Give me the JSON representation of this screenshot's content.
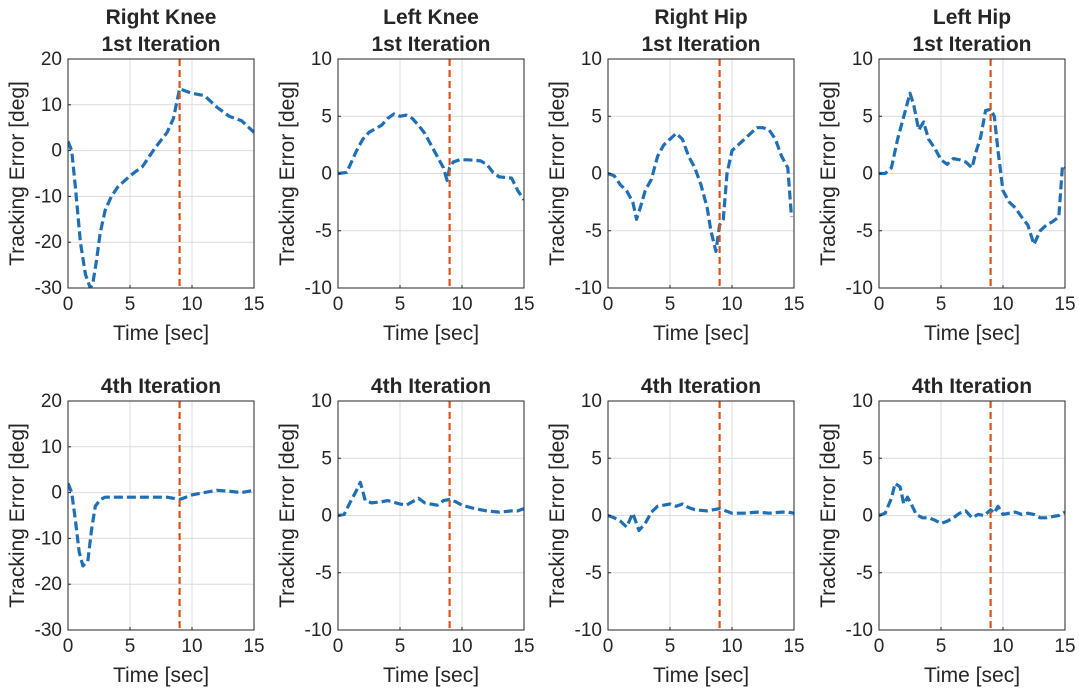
{
  "figure": {
    "rows": 2,
    "cols": 4
  },
  "colors": {
    "series": "#1f6fb5",
    "marker_line": "#d95319",
    "axis": "#262626",
    "grid": "#dcdcdc"
  },
  "chart_data": [
    {
      "type": "line",
      "title_lines": [
        "Right Knee",
        "1st Iteration"
      ],
      "xlabel": "Time [sec]",
      "ylabel": "Tracking Error [deg]",
      "xlim": [
        0,
        15
      ],
      "ylim": [
        -30,
        20
      ],
      "xticks": [
        0,
        5,
        10,
        15
      ],
      "yticks": [
        -30,
        -20,
        -10,
        0,
        10,
        20
      ],
      "vline_x": 9,
      "grid": true,
      "series": [
        {
          "name": "tracking error",
          "style": "dashed",
          "x": [
            0,
            0.3,
            0.6,
            1.0,
            1.4,
            1.8,
            2.0,
            2.3,
            2.6,
            3.0,
            3.5,
            4.0,
            5.0,
            6.0,
            7.0,
            8.0,
            8.5,
            9.0,
            9.5,
            10.0,
            11.0,
            12.0,
            12.5,
            13.0,
            14.0,
            15.0
          ],
          "y": [
            2,
            0,
            -8,
            -20,
            -27,
            -30,
            -29,
            -24,
            -18,
            -13,
            -10,
            -8,
            -5.5,
            -3.5,
            0.5,
            4,
            7,
            13.5,
            13,
            12.5,
            12,
            9.5,
            8.5,
            7.5,
            6.5,
            4
          ]
        }
      ]
    },
    {
      "type": "line",
      "title_lines": [
        "Left Knee",
        "1st Iteration"
      ],
      "xlabel": "Time [sec]",
      "ylabel": "Tracking Error [deg]",
      "xlim": [
        0,
        15
      ],
      "ylim": [
        -10,
        10
      ],
      "xticks": [
        0,
        5,
        10,
        15
      ],
      "yticks": [
        -10,
        -5,
        0,
        5,
        10
      ],
      "vline_x": 9,
      "grid": true,
      "series": [
        {
          "name": "tracking error",
          "style": "dashed",
          "x": [
            0,
            0.7,
            1.0,
            1.5,
            2.0,
            2.5,
            3.0,
            3.5,
            4.0,
            4.5,
            5.0,
            5.5,
            6.0,
            6.5,
            7.0,
            7.5,
            8.0,
            8.5,
            8.8,
            9.0,
            9.3,
            9.8,
            10.5,
            11.5,
            12.0,
            12.5,
            13.0,
            14.0,
            14.5,
            15.0
          ],
          "y": [
            0,
            0.1,
            0.8,
            2,
            3,
            3.6,
            3.9,
            4.2,
            4.8,
            5.2,
            5.0,
            5.1,
            4.8,
            4.2,
            3.5,
            2.5,
            1.5,
            0.5,
            -0.6,
            0.5,
            1.0,
            1.2,
            1.2,
            1.1,
            0.8,
            0.1,
            -0.3,
            -0.4,
            -1.5,
            -2.3
          ]
        }
      ]
    },
    {
      "type": "line",
      "title_lines": [
        "Right Hip",
        "1st Iteration"
      ],
      "xlabel": "Time [sec]",
      "ylabel": "Tracking Error [deg]",
      "xlim": [
        0,
        15
      ],
      "ylim": [
        -10,
        10
      ],
      "xticks": [
        0,
        5,
        10,
        15
      ],
      "yticks": [
        -10,
        -5,
        0,
        5,
        10
      ],
      "vline_x": 9,
      "grid": true,
      "series": [
        {
          "name": "tracking error",
          "style": "dashed",
          "x": [
            0,
            0.5,
            1.0,
            1.5,
            2.0,
            2.3,
            2.6,
            3.0,
            3.5,
            4.0,
            4.5,
            5.0,
            5.5,
            6.0,
            6.5,
            7.0,
            7.5,
            8.0,
            8.3,
            8.7,
            9.0,
            9.3,
            9.6,
            10.0,
            10.5,
            11.0,
            11.5,
            12.0,
            12.5,
            13.0,
            13.5,
            14.0,
            14.5,
            14.8
          ],
          "y": [
            0,
            -0.2,
            -1,
            -1.5,
            -2.5,
            -4,
            -3,
            -1.5,
            -0.5,
            1.5,
            2.5,
            3,
            3.5,
            3,
            1.5,
            0.5,
            -1,
            -3,
            -5,
            -6.8,
            -4.5,
            -4,
            0,
            2,
            2.5,
            3,
            3.5,
            4,
            4,
            3.8,
            3,
            1.5,
            0.5,
            -3.8
          ]
        }
      ]
    },
    {
      "type": "line",
      "title_lines": [
        "Left Hip",
        "1st Iteration"
      ],
      "xlabel": "Time [sec]",
      "ylabel": "Tracking Error [deg]",
      "xlim": [
        0,
        15
      ],
      "ylim": [
        -10,
        10
      ],
      "xticks": [
        0,
        5,
        10,
        15
      ],
      "yticks": [
        -10,
        -5,
        0,
        5,
        10
      ],
      "vline_x": 9,
      "grid": true,
      "series": [
        {
          "name": "tracking error",
          "style": "dashed",
          "x": [
            0,
            0.5,
            1.0,
            1.5,
            2.0,
            2.5,
            2.8,
            3.2,
            3.6,
            4.0,
            4.5,
            5.0,
            5.5,
            6.0,
            6.5,
            7.0,
            7.5,
            7.8,
            8.2,
            8.6,
            9.0,
            9.3,
            9.6,
            10.0,
            10.5,
            11.0,
            11.5,
            12.0,
            12.5,
            13.0,
            13.5,
            14.0,
            14.5,
            14.8,
            15.0
          ],
          "y": [
            0,
            0,
            0.5,
            3,
            5,
            7,
            6,
            3.8,
            4.5,
            3,
            2.2,
            1.2,
            0.8,
            1.3,
            1.2,
            1.0,
            0.5,
            1.8,
            3.2,
            5.5,
            5.6,
            5.0,
            2.0,
            -1.5,
            -2.5,
            -3,
            -3.8,
            -4.5,
            -6.2,
            -5.0,
            -4.5,
            -4.2,
            -3.8,
            0.7,
            0.5
          ]
        }
      ]
    },
    {
      "type": "line",
      "title_lines": [
        "4th Iteration"
      ],
      "xlabel": "Time [sec]",
      "ylabel": "Tracking Error [deg]",
      "xlim": [
        0,
        15
      ],
      "ylim": [
        -30,
        20
      ],
      "xticks": [
        0,
        5,
        10,
        15
      ],
      "yticks": [
        -30,
        -20,
        -10,
        0,
        10,
        20
      ],
      "vline_x": 9,
      "grid": true,
      "series": [
        {
          "name": "tracking error",
          "style": "dashed",
          "x": [
            0,
            0.3,
            0.6,
            0.9,
            1.2,
            1.6,
            1.9,
            2.2,
            2.6,
            3.0,
            4.0,
            5.0,
            6.0,
            7.0,
            8.0,
            9.0,
            10.0,
            11.0,
            12.0,
            13.0,
            14.0,
            15.0
          ],
          "y": [
            2,
            0,
            -6,
            -13,
            -16,
            -15,
            -8,
            -3,
            -1.5,
            -1,
            -1,
            -1,
            -1,
            -1,
            -1,
            -1.5,
            -0.5,
            0,
            0.5,
            0.3,
            0,
            0.5
          ]
        }
      ]
    },
    {
      "type": "line",
      "title_lines": [
        "4th Iteration"
      ],
      "xlabel": "Time [sec]",
      "ylabel": "Tracking Error [deg]",
      "xlim": [
        0,
        15
      ],
      "ylim": [
        -10,
        10
      ],
      "xticks": [
        0,
        5,
        10,
        15
      ],
      "yticks": [
        -10,
        -5,
        0,
        5,
        10
      ],
      "vline_x": 9,
      "grid": true,
      "series": [
        {
          "name": "tracking error",
          "style": "dashed",
          "x": [
            0,
            0.5,
            1.0,
            1.5,
            1.8,
            2.2,
            2.7,
            3.5,
            4.0,
            5.0,
            5.5,
            6.5,
            7.0,
            8.0,
            8.5,
            9.0,
            9.5,
            10.0,
            11.0,
            12.0,
            13.0,
            14.0,
            14.5,
            15.0
          ],
          "y": [
            0,
            0.1,
            1.2,
            2.2,
            2.9,
            1.3,
            1.1,
            1.2,
            1.3,
            1.0,
            0.9,
            1.5,
            1.1,
            0.9,
            1.3,
            1.4,
            1.2,
            0.9,
            0.6,
            0.4,
            0.3,
            0.4,
            0.4,
            0.6
          ]
        }
      ]
    },
    {
      "type": "line",
      "title_lines": [
        "4th Iteration"
      ],
      "xlabel": "Time [sec]",
      "ylabel": "Tracking Error [deg]",
      "xlim": [
        0,
        15
      ],
      "ylim": [
        -10,
        10
      ],
      "xticks": [
        0,
        5,
        10,
        15
      ],
      "yticks": [
        -10,
        -5,
        0,
        5,
        10
      ],
      "vline_x": 9,
      "grid": true,
      "series": [
        {
          "name": "tracking error",
          "style": "dashed",
          "x": [
            0,
            0.5,
            1.0,
            1.5,
            2.0,
            2.5,
            3.0,
            3.5,
            4.0,
            4.5,
            5.0,
            5.5,
            6.0,
            6.5,
            7.0,
            8.0,
            9.0,
            9.5,
            10.0,
            11.0,
            12.0,
            13.0,
            14.0,
            14.5,
            15.0
          ],
          "y": [
            0,
            -0.2,
            -0.5,
            -1.0,
            0.2,
            -1.3,
            -0.7,
            0.3,
            0.8,
            0.9,
            1.0,
            0.8,
            1.0,
            0.7,
            0.5,
            0.4,
            0.6,
            0.4,
            0.2,
            0.2,
            0.3,
            0.2,
            0.3,
            0.3,
            0.2
          ]
        }
      ]
    },
    {
      "type": "line",
      "title_lines": [
        "4th Iteration"
      ],
      "xlabel": "Time [sec]",
      "ylabel": "Tracking Error [deg]",
      "xlim": [
        0,
        15
      ],
      "ylim": [
        -10,
        10
      ],
      "xticks": [
        0,
        5,
        10,
        15
      ],
      "yticks": [
        -10,
        -5,
        0,
        5,
        10
      ],
      "vline_x": 9,
      "grid": true,
      "series": [
        {
          "name": "tracking error",
          "style": "dashed",
          "x": [
            0,
            0.5,
            1.0,
            1.3,
            1.7,
            2.0,
            2.3,
            2.6,
            3.0,
            3.5,
            4.0,
            4.5,
            5.0,
            5.5,
            6.0,
            6.5,
            7.0,
            7.5,
            8.0,
            8.5,
            9.0,
            9.3,
            9.6,
            10.0,
            10.5,
            11.0,
            11.5,
            12.0,
            12.5,
            13.0,
            13.5,
            14.0,
            14.5,
            15.0
          ],
          "y": [
            0,
            0.2,
            1.5,
            2.8,
            2.5,
            1.0,
            1.6,
            1.0,
            0.1,
            -0.2,
            -0.2,
            -0.4,
            -0.7,
            -0.5,
            -0.2,
            0.2,
            0.4,
            -0.2,
            0.1,
            0.0,
            0.5,
            0.2,
            0.8,
            0.1,
            0.2,
            0.3,
            0.1,
            0.2,
            0.1,
            -0.2,
            -0.2,
            -0.1,
            0.0,
            0.3
          ]
        }
      ]
    }
  ]
}
